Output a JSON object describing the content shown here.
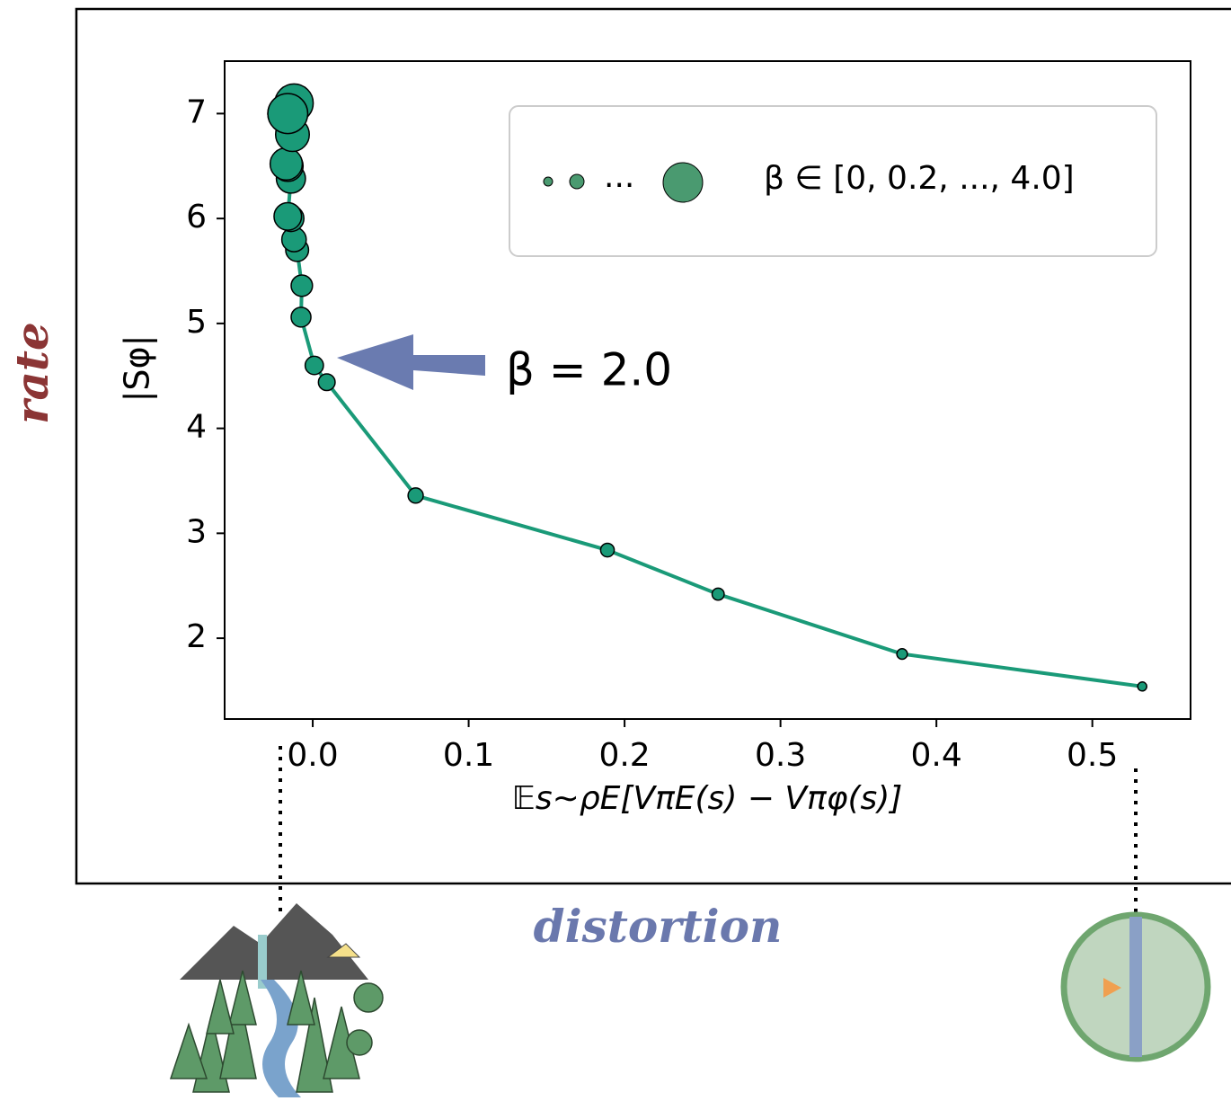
{
  "chart_data": {
    "type": "scatter-line",
    "side_label_y": "rate",
    "side_label_x": "distortion",
    "y_label": "|Sφ|",
    "x_label": "𝔼s∼ρE[VπE(s) − Vπφ(s)]",
    "annotation": "β  = 2.0",
    "legend_ellipsis": "...",
    "legend_label": "β ∈ [0, 0.2, ..., 4.0]",
    "xlim": [
      -0.0565,
      0.563
    ],
    "ylim": [
      1.23,
      7.5
    ],
    "xticks": [
      {
        "value": 0,
        "label": "0.0"
      },
      0.1,
      0.2,
      0.3,
      0.4,
      0.5
    ],
    "yticks": [
      2,
      3,
      4,
      5,
      6,
      7
    ],
    "series": [
      {
        "color": "#1a9a78",
        "x": [
          0.532,
          0.378,
          0.26,
          0.189,
          0.066,
          0.009,
          0.001,
          -0.0075,
          -0.007,
          -0.01,
          -0.012,
          -0.014,
          -0.016,
          -0.014,
          -0.016,
          -0.017,
          -0.013,
          -0.015,
          -0.017,
          -0.012,
          -0.016
        ],
        "values": [
          1.54,
          1.85,
          2.42,
          2.84,
          3.36,
          4.44,
          4.6,
          5.06,
          5.36,
          5.7,
          5.8,
          6.0,
          6.02,
          6.38,
          6.5,
          6.52,
          6.8,
          7.0,
          7.0,
          7.1,
          7.0
        ],
        "sizes": [
          0,
          0.2,
          0.4,
          0.6,
          0.8,
          1.0,
          1.2,
          1.4,
          1.6,
          1.8,
          2.0,
          2.2,
          2.4,
          2.6,
          2.8,
          3.0,
          3.2,
          3.4,
          3.6,
          3.8,
          4.0
        ]
      }
    ]
  }
}
